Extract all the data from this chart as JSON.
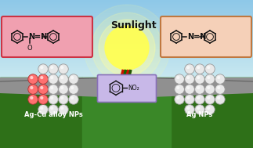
{
  "sunlight_text": "Sunlight",
  "left_label": "Ag-Cu alloy NPs",
  "right_label": "Ag NPs",
  "sky_top": "#8ec8e8",
  "sky_bottom": "#b8dce8",
  "grass_main": "#4a9a30",
  "grass_dark": "#2e7018",
  "grass_mid": "#3a8828",
  "road_color": "#909090",
  "road_dark": "#707070",
  "sun_color": "#ffff55",
  "sun_glow": "#ffffa0",
  "left_box_bg": "#f0a0b0",
  "left_box_edge": "#cc3344",
  "right_box_bg": "#f5d0b8",
  "right_box_edge": "#c07840",
  "nitro_box_bg": "#c8b8e8",
  "nitro_box_edge": "#8870b8",
  "label_color": "#ffffff",
  "fig_width": 3.23,
  "fig_height": 1.89,
  "dpi": 100
}
